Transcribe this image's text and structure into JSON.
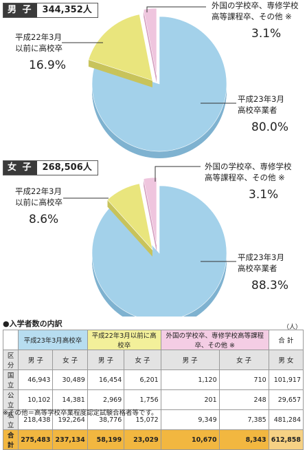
{
  "male": {
    "gender": "男 子",
    "total": "344,352人",
    "slices": [
      {
        "label": [
          "平成23年3月",
          "高校卒業者"
        ],
        "pct_text": "80.0%",
        "value": 80.0,
        "color": "#a3d1ea",
        "side": "#7fb2d0"
      },
      {
        "label": [
          "平成22年3月",
          "以前に高校卒"
        ],
        "pct_text": "16.9%",
        "value": 16.9,
        "color": "#e9e57d",
        "side": "#c8c35b"
      },
      {
        "label": [
          "外国の学校卒、専修学校",
          "高等課程卒、その他 ※"
        ],
        "pct_text": "3.1%",
        "value": 3.1,
        "color": "#efc5de",
        "side": "#d49ebf"
      }
    ]
  },
  "female": {
    "gender": "女 子",
    "total": "268,506人",
    "slices": [
      {
        "label": [
          "平成23年3月",
          "高校卒業者"
        ],
        "pct_text": "88.3%",
        "value": 88.3,
        "color": "#a3d1ea",
        "side": "#7fb2d0"
      },
      {
        "label": [
          "平成22年3月",
          "以前に高校卒"
        ],
        "pct_text": "8.6%",
        "value": 8.6,
        "color": "#e9e57d",
        "side": "#c8c35b"
      },
      {
        "label": [
          "外国の学校卒、専修学校",
          "高等課程卒、その他 ※"
        ],
        "pct_text": "3.1%",
        "value": 3.1,
        "color": "#efc5de",
        "side": "#d49ebf"
      }
    ]
  },
  "chart_data": [
    {
      "type": "pie",
      "title": "男 子 344,352人",
      "categories": [
        "平成23年3月高校卒業者",
        "平成22年3月以前に高校卒",
        "外国の学校卒、専修学校高等課程卒、その他 ※"
      ],
      "values": [
        80.0,
        16.9,
        3.1
      ]
    },
    {
      "type": "pie",
      "title": "女 子 268,506人",
      "categories": [
        "平成23年3月高校卒業者",
        "平成22年3月以前に高校卒",
        "外国の学校卒、専修学校高等課程卒、その他 ※"
      ],
      "values": [
        88.3,
        8.6,
        3.1
      ]
    }
  ],
  "table": {
    "section_title": "●入学者数の内訳",
    "unit": "（人）",
    "groups": [
      "平成23年3月高校卒",
      "平成22年3月以前に高校卒",
      "外国の学校卒、専修学校高等課程卒、その他 ※",
      "合 計"
    ],
    "subheaders": [
      "区分",
      "男 子",
      "女 子",
      "男 子",
      "女 子",
      "男 子",
      "女 子",
      "男 女"
    ],
    "rows": [
      [
        "国立",
        "46,943",
        "30,489",
        "16,454",
        "6,201",
        "1,120",
        "710",
        "101,917"
      ],
      [
        "公立",
        "10,102",
        "14,381",
        "2,969",
        "1,756",
        "201",
        "248",
        "29,657"
      ],
      [
        "私立",
        "218,438",
        "192,264",
        "38,776",
        "15,072",
        "9,349",
        "7,385",
        "481,284"
      ],
      [
        "合計",
        "275,483",
        "237,134",
        "58,199",
        "23,029",
        "10,670",
        "8,343",
        "612,858"
      ]
    ]
  },
  "note": "※その他＝高等学校卒業程度認定試験合格者等です。"
}
